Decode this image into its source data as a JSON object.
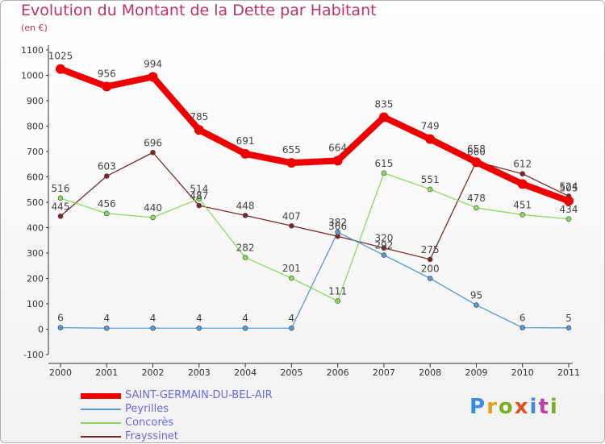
{
  "title": "Evolution du Montant de la Dette par Habitant",
  "subtitle": "(en €)",
  "logo": {
    "text": "Proxiti",
    "colors": [
      "#3b8be0",
      "#e0a020",
      "#7ab020",
      "#e05020",
      "#3b8be0",
      "#c040a0",
      "#7ab020"
    ]
  },
  "chart_data": {
    "type": "line",
    "x": [
      "2000",
      "2001",
      "2002",
      "2003",
      "2004",
      "2005",
      "2006",
      "2007",
      "2008",
      "2009",
      "2010",
      "2011"
    ],
    "ylim": [
      -100,
      1100
    ],
    "yticks": [
      "-100",
      "0",
      "100",
      "200",
      "300",
      "400",
      "500",
      "600",
      "700",
      "800",
      "900",
      "1000",
      "1100"
    ],
    "grid": false,
    "legend_position": "bottom-left",
    "series": [
      {
        "name": "SAINT-GERMAIN-DU-BEL-AIR",
        "color": "#ee0000",
        "values": [
          1025,
          956,
          994,
          785,
          691,
          655,
          664,
          835,
          749,
          658,
          572,
          505
        ],
        "labels": [
          "1025",
          "956",
          "994",
          "785",
          "691",
          "655",
          "664",
          "835",
          "749",
          "658",
          "",
          "505"
        ]
      },
      {
        "name": "Peyrilles",
        "color": "#5a9ad0",
        "values": [
          6,
          4,
          4,
          4,
          4,
          4,
          382,
          292,
          200,
          95,
          6,
          5
        ],
        "labels": [
          "6",
          "4",
          "4",
          "4",
          "4",
          "4",
          "382",
          "292",
          "200",
          "95",
          "6",
          "5"
        ]
      },
      {
        "name": "Concorès",
        "color": "#8ed860",
        "values": [
          516,
          456,
          440,
          514,
          282,
          201,
          111,
          615,
          551,
          478,
          451,
          434
        ],
        "labels": [
          "516",
          "456",
          "440",
          "514",
          "282",
          "201",
          "111",
          "615",
          "551",
          "478",
          "451",
          "434"
        ]
      },
      {
        "name": "Frayssinet",
        "color": "#7a2a2a",
        "values": [
          445,
          603,
          696,
          487,
          448,
          407,
          366,
          320,
          275,
          660,
          612,
          524
        ],
        "labels": [
          "445",
          "603",
          "696",
          "487",
          "448",
          "407",
          "366",
          "320",
          "275",
          "660",
          "612",
          "524"
        ]
      }
    ]
  }
}
